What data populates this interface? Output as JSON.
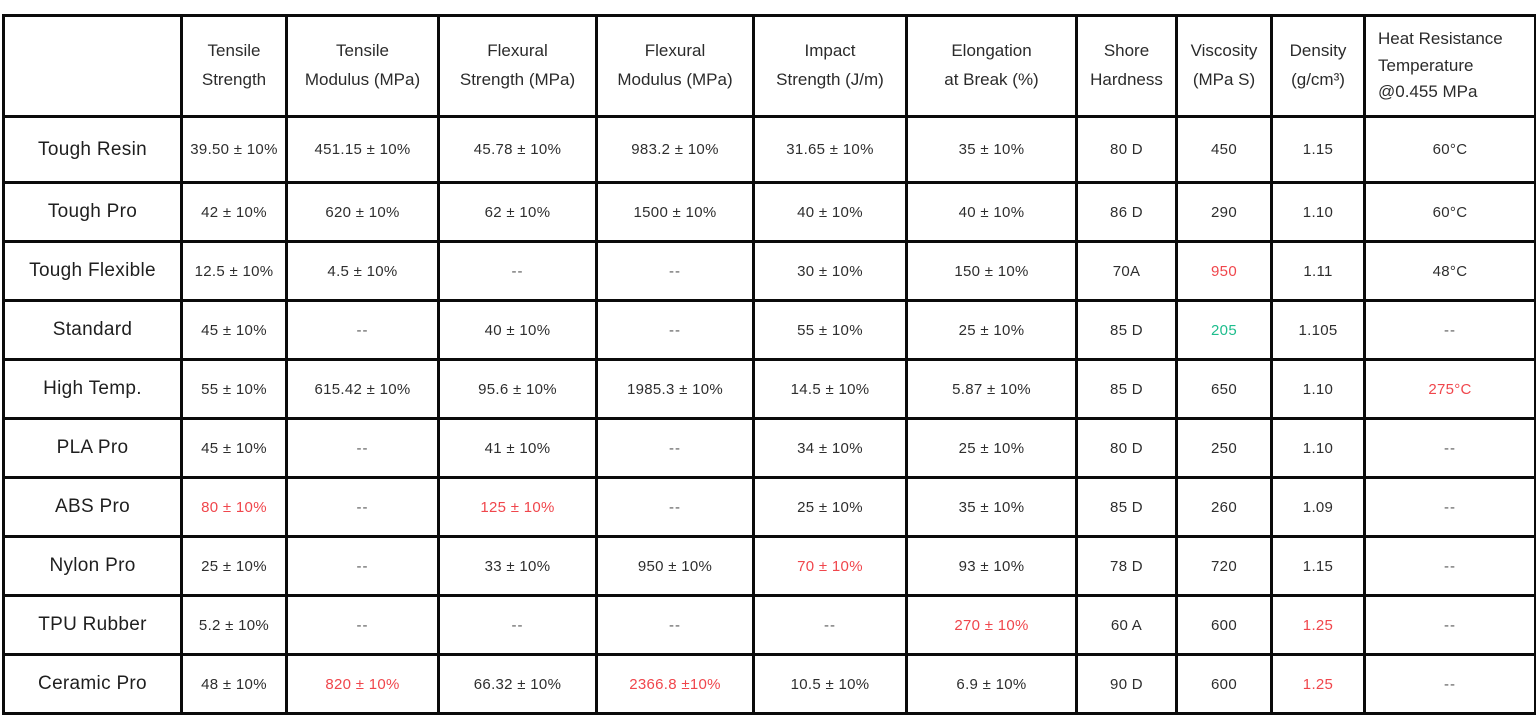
{
  "accent_colors": {
    "red": "#f0464c",
    "green": "#1ebd8d"
  },
  "table": {
    "columns": [
      {
        "id": "material",
        "label": ""
      },
      {
        "id": "tensile-strength",
        "label": "Tensile\nStrength"
      },
      {
        "id": "tensile-modulus",
        "label": "Tensile\nModulus (MPa)"
      },
      {
        "id": "flexural-strength",
        "label": "Flexural\nStrength (MPa)"
      },
      {
        "id": "flexural-modulus",
        "label": "Flexural\nModulus (MPa)"
      },
      {
        "id": "impact-strength",
        "label": "Impact\nStrength (J/m)"
      },
      {
        "id": "elongation-at-break",
        "label": "Elongation\nat Break (%)"
      },
      {
        "id": "shore-hardness",
        "label": "Shore\nHardness"
      },
      {
        "id": "viscosity",
        "label": "Viscosity\n(MPa S)"
      },
      {
        "id": "density",
        "label": "Density\n(g/cm³)"
      },
      {
        "id": "heat-resistance",
        "label": "Heat Resistance\nTemperature\n@0.455 MPa"
      }
    ],
    "rows": [
      {
        "material": "Tough Resin",
        "cells": [
          {
            "text": "39.50 ± 10%"
          },
          {
            "text": "451.15 ± 10%"
          },
          {
            "text": "45.78 ± 10%"
          },
          {
            "text": "983.2 ± 10%"
          },
          {
            "text": "31.65 ± 10%"
          },
          {
            "text": "35 ± 10%"
          },
          {
            "text": "80 D"
          },
          {
            "text": "450"
          },
          {
            "text": "1.15"
          },
          {
            "text": "60°C"
          }
        ]
      },
      {
        "material": "Tough Pro",
        "cells": [
          {
            "text": "42 ± 10%"
          },
          {
            "text": "620 ± 10%"
          },
          {
            "text": "62 ± 10%"
          },
          {
            "text": "1500 ± 10%"
          },
          {
            "text": "40 ± 10%"
          },
          {
            "text": "40 ± 10%"
          },
          {
            "text": "86 D"
          },
          {
            "text": "290"
          },
          {
            "text": "1.10"
          },
          {
            "text": "60°C"
          }
        ]
      },
      {
        "material": "Tough Flexible",
        "cells": [
          {
            "text": "12.5 ± 10%"
          },
          {
            "text": "4.5 ± 10%"
          },
          {
            "text": "--"
          },
          {
            "text": "--"
          },
          {
            "text": "30 ± 10%"
          },
          {
            "text": "150 ± 10%"
          },
          {
            "text": "70A"
          },
          {
            "text": "950",
            "color": "red"
          },
          {
            "text": "1.11"
          },
          {
            "text": "48°C"
          }
        ]
      },
      {
        "material": "Standard",
        "cells": [
          {
            "text": "45 ± 10%"
          },
          {
            "text": "--"
          },
          {
            "text": "40 ± 10%"
          },
          {
            "text": "--"
          },
          {
            "text": "55 ± 10%"
          },
          {
            "text": "25 ± 10%"
          },
          {
            "text": "85 D"
          },
          {
            "text": "205",
            "color": "green"
          },
          {
            "text": "1.105"
          },
          {
            "text": "--"
          }
        ]
      },
      {
        "material": "High Temp.",
        "cells": [
          {
            "text": "55 ± 10%"
          },
          {
            "text": "615.42 ± 10%"
          },
          {
            "text": "95.6 ± 10%"
          },
          {
            "text": "1985.3 ± 10%"
          },
          {
            "text": "14.5 ± 10%"
          },
          {
            "text": "5.87 ± 10%"
          },
          {
            "text": "85 D"
          },
          {
            "text": "650"
          },
          {
            "text": "1.10"
          },
          {
            "text": "275°C",
            "color": "red"
          }
        ]
      },
      {
        "material": "PLA Pro",
        "cells": [
          {
            "text": "45 ± 10%"
          },
          {
            "text": "--"
          },
          {
            "text": "41 ± 10%"
          },
          {
            "text": "--"
          },
          {
            "text": "34 ± 10%"
          },
          {
            "text": "25 ± 10%"
          },
          {
            "text": "80 D"
          },
          {
            "text": "250"
          },
          {
            "text": "1.10"
          },
          {
            "text": "--"
          }
        ]
      },
      {
        "material": "ABS Pro",
        "cells": [
          {
            "text": "80 ± 10%",
            "color": "red"
          },
          {
            "text": "--"
          },
          {
            "text": "125 ± 10%",
            "color": "red"
          },
          {
            "text": "--"
          },
          {
            "text": "25 ± 10%"
          },
          {
            "text": "35 ± 10%"
          },
          {
            "text": "85 D"
          },
          {
            "text": "260"
          },
          {
            "text": "1.09"
          },
          {
            "text": "--"
          }
        ]
      },
      {
        "material": "Nylon Pro",
        "cells": [
          {
            "text": "25 ± 10%"
          },
          {
            "text": "--"
          },
          {
            "text": "33 ± 10%"
          },
          {
            "text": "950 ± 10%"
          },
          {
            "text": "70 ± 10%",
            "color": "red"
          },
          {
            "text": "93 ± 10%"
          },
          {
            "text": "78 D"
          },
          {
            "text": "720"
          },
          {
            "text": "1.15"
          },
          {
            "text": "--"
          }
        ]
      },
      {
        "material": "TPU Rubber",
        "cells": [
          {
            "text": "5.2 ± 10%"
          },
          {
            "text": "--"
          },
          {
            "text": "--"
          },
          {
            "text": "--"
          },
          {
            "text": "--"
          },
          {
            "text": "270 ± 10%",
            "color": "red"
          },
          {
            "text": "60 A"
          },
          {
            "text": "600"
          },
          {
            "text": "1.25",
            "color": "red"
          },
          {
            "text": "--"
          }
        ]
      },
      {
        "material": "Ceramic Pro",
        "cells": [
          {
            "text": "48 ± 10%"
          },
          {
            "text": "820 ± 10%",
            "color": "red"
          },
          {
            "text": "66.32 ± 10%"
          },
          {
            "text": "2366.8 ±10%",
            "color": "red"
          },
          {
            "text": "10.5 ± 10%"
          },
          {
            "text": "6.9 ± 10%"
          },
          {
            "text": "90 D"
          },
          {
            "text": "600"
          },
          {
            "text": "1.25",
            "color": "red"
          },
          {
            "text": "--"
          }
        ]
      }
    ]
  },
  "chart_data": {
    "type": "table",
    "title": "",
    "columns": [
      "",
      "Tensile Strength",
      "Tensile Modulus (MPa)",
      "Flexural Strength (MPa)",
      "Flexural Modulus (MPa)",
      "Impact Strength (J/m)",
      "Elongation at Break (%)",
      "Shore Hardness",
      "Viscosity (MPa S)",
      "Density (g/cm³)",
      "Heat Resistance Temperature @0.455 MPa"
    ],
    "rows": [
      [
        "Tough Resin",
        "39.50 ± 10%",
        "451.15 ± 10%",
        "45.78 ± 10%",
        "983.2 ± 10%",
        "31.65 ± 10%",
        "35 ± 10%",
        "80 D",
        "450",
        "1.15",
        "60°C"
      ],
      [
        "Tough Pro",
        "42 ± 10%",
        "620 ± 10%",
        "62 ± 10%",
        "1500 ± 10%",
        "40 ± 10%",
        "40 ± 10%",
        "86 D",
        "290",
        "1.10",
        "60°C"
      ],
      [
        "Tough Flexible",
        "12.5 ± 10%",
        "4.5 ± 10%",
        "--",
        "--",
        "30 ± 10%",
        "150 ± 10%",
        "70A",
        "950",
        "1.11",
        "48°C"
      ],
      [
        "Standard",
        "45 ± 10%",
        "--",
        "40 ± 10%",
        "--",
        "55 ± 10%",
        "25 ± 10%",
        "85 D",
        "205",
        "1.105",
        "--"
      ],
      [
        "High Temp.",
        "55 ± 10%",
        "615.42 ± 10%",
        "95.6 ± 10%",
        "1985.3 ± 10%",
        "14.5 ± 10%",
        "5.87 ± 10%",
        "85 D",
        "650",
        "1.10",
        "275°C"
      ],
      [
        "PLA Pro",
        "45 ± 10%",
        "--",
        "41 ± 10%",
        "--",
        "34 ± 10%",
        "25 ± 10%",
        "80 D",
        "250",
        "1.10",
        "--"
      ],
      [
        "ABS Pro",
        "80 ± 10%",
        "--",
        "125 ± 10%",
        "--",
        "25 ± 10%",
        "35 ± 10%",
        "85 D",
        "260",
        "1.09",
        "--"
      ],
      [
        "Nylon Pro",
        "25 ± 10%",
        "--",
        "33 ± 10%",
        "950 ± 10%",
        "70 ± 10%",
        "93 ± 10%",
        "78 D",
        "720",
        "1.15",
        "--"
      ],
      [
        "TPU Rubber",
        "5.2 ± 10%",
        "--",
        "--",
        "--",
        "--",
        "270 ± 10%",
        "60 A",
        "600",
        "1.25",
        "--"
      ],
      [
        "Ceramic Pro",
        "48 ± 10%",
        "820 ± 10%",
        "66.32 ± 10%",
        "2366.8 ±10%",
        "10.5 ± 10%",
        "6.9 ± 10%",
        "90 D",
        "600",
        "1.25",
        "--"
      ]
    ]
  }
}
